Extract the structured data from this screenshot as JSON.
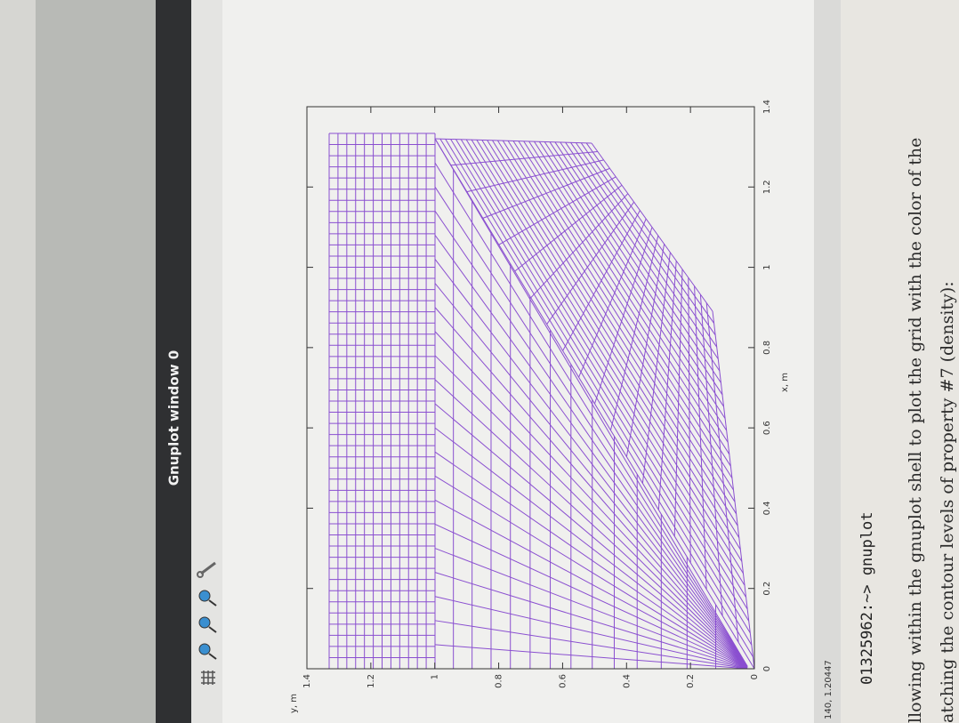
{
  "window": {
    "title": "Gnuplot window 0",
    "status": "140, 1.20447"
  },
  "plot": {
    "xlabel": "x, m",
    "ylabel": "y, m",
    "xlim": [
      0,
      1.4
    ],
    "ylim": [
      0,
      1.4
    ],
    "xticks": [
      0,
      0.2,
      0.4,
      0.6,
      0.8,
      1,
      1.2,
      1.4
    ],
    "yticks": [
      0,
      0.2,
      0.4,
      0.6,
      0.8,
      1,
      1.2,
      1.4
    ]
  },
  "document": {
    "prompt": "01325962:~> gnuplot",
    "lines": [
      "llowing within the gnuplot shell to plot the grid with the color of the",
      "atching the contour levels of property #7 (density):"
    ]
  }
}
